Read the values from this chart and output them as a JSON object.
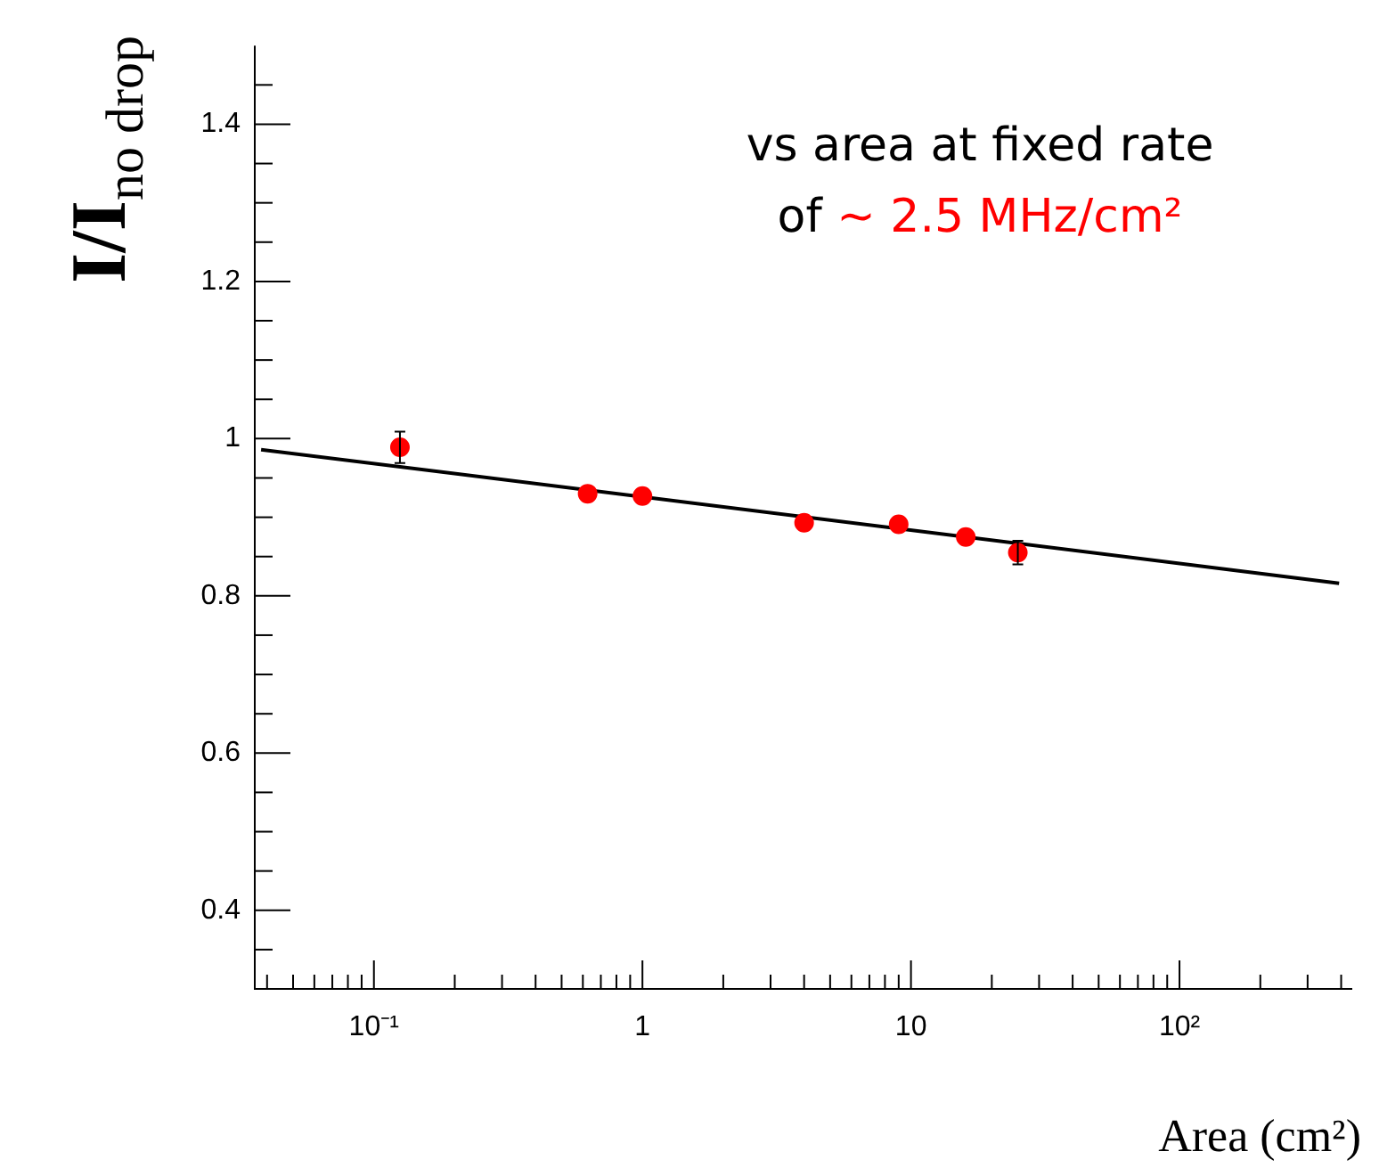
{
  "chart_data": {
    "type": "scatter",
    "ylabel": "I/I$_{no drop}$",
    "xlabel": "Area (cm²)",
    "annotations": [
      "vs area at fixed rate",
      "of",
      "~ 2.5 MHz/cm²"
    ],
    "log": "x",
    "grid": false,
    "legend": false,
    "xlim": [
      0.036,
      440
    ],
    "xticks": [
      {
        "value": 0.04,
        "label": null
      },
      {
        "value": 0.05,
        "label": null
      },
      {
        "value": 0.06,
        "label": null
      },
      {
        "value": 0.07,
        "label": null
      },
      {
        "value": 0.08,
        "label": null
      },
      {
        "value": 0.09,
        "label": null
      },
      {
        "value": 0.1,
        "label": "10⁻¹"
      },
      {
        "value": 0.2,
        "label": null
      },
      {
        "value": 0.3,
        "label": null
      },
      {
        "value": 0.4,
        "label": null
      },
      {
        "value": 0.5,
        "label": null
      },
      {
        "value": 0.6,
        "label": null
      },
      {
        "value": 0.7,
        "label": null
      },
      {
        "value": 0.8,
        "label": null
      },
      {
        "value": 0.9,
        "label": null
      },
      1,
      {
        "value": 2,
        "label": null
      },
      {
        "value": 3,
        "label": null
      },
      {
        "value": 4,
        "label": null
      },
      {
        "value": 5,
        "label": null
      },
      {
        "value": 6,
        "label": null
      },
      {
        "value": 7,
        "label": null
      },
      {
        "value": 8,
        "label": null
      },
      {
        "value": 9,
        "label": null
      },
      10,
      {
        "value": 20,
        "label": null
      },
      {
        "value": 30,
        "label": null
      },
      {
        "value": 40,
        "label": null
      },
      {
        "value": 50,
        "label": null
      },
      {
        "value": 60,
        "label": null
      },
      {
        "value": 70,
        "label": null
      },
      {
        "value": 80,
        "label": null
      },
      {
        "value": 90,
        "label": null
      },
      {
        "value": 100,
        "label": "10²"
      },
      {
        "value": 200,
        "label": null
      },
      {
        "value": 300,
        "label": null
      },
      {
        "value": 400,
        "label": null
      }
    ],
    "ylim": [
      0.3,
      1.5
    ],
    "yticks": [
      {
        "value": 0.35,
        "label": null
      },
      0.4,
      {
        "value": 0.45,
        "label": null
      },
      {
        "value": 0.5,
        "label": null
      },
      {
        "value": 0.55,
        "label": null
      },
      0.6,
      {
        "value": 0.65,
        "label": null
      },
      {
        "value": 0.7,
        "label": null
      },
      {
        "value": 0.75,
        "label": null
      },
      0.8,
      {
        "value": 0.85,
        "label": null
      },
      {
        "value": 0.9,
        "label": null
      },
      {
        "value": 0.95,
        "label": null
      },
      1,
      {
        "value": 1.05,
        "label": null
      },
      {
        "value": 1.1,
        "label": null
      },
      {
        "value": 1.15,
        "label": null
      },
      1.2,
      {
        "value": 1.25,
        "label": null
      },
      {
        "value": 1.3,
        "label": null
      },
      {
        "value": 1.35,
        "label": null
      },
      1.4,
      {
        "value": 1.45,
        "label": null
      }
    ],
    "series": [
      {
        "color": "#ff0000",
        "marker": "circle",
        "x": [
          0.125,
          0.625,
          1,
          4,
          9,
          16,
          25
        ],
        "values": [
          0.989,
          0.93,
          0.927,
          0.893,
          0.891,
          0.875,
          0.855
        ],
        "errors": [
          0.02,
          null,
          null,
          null,
          null,
          null,
          0.015
        ]
      },
      {
        "type": "line",
        "marker": "none",
        "color": "#000000",
        "x": [
          0.038,
          393
        ],
        "values": [
          0.986,
          0.816
        ]
      }
    ]
  }
}
